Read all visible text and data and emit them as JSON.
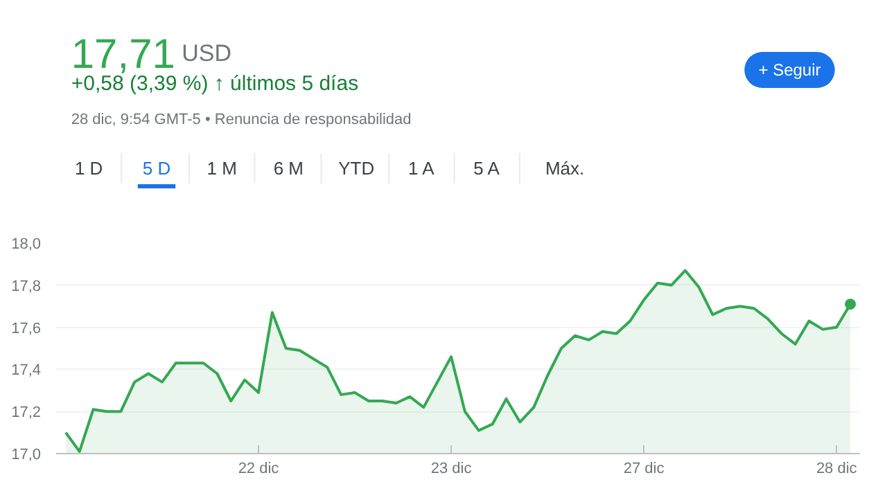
{
  "chart_data": {
    "type": "area",
    "title": "17,71",
    "subtitle": "USD",
    "annotations": [
      "+0,58 (3,39 %) ↑ últimos 5 días",
      "28 dic, 9:54 GMT-5 • Renuncia de responsabilidad",
      "+ Seguir",
      "1 D",
      "5 D",
      "1 M",
      "6 M",
      "YTD",
      "1 A",
      "5 A",
      "Máx."
    ],
    "categories": [
      null,
      null,
      null,
      null,
      null,
      null,
      null,
      null,
      null,
      null,
      null,
      null,
      null,
      null,
      "22 dic",
      null,
      null,
      null,
      null,
      null,
      null,
      null,
      null,
      null,
      null,
      null,
      null,
      null,
      "23 dic",
      null,
      null,
      null,
      null,
      null,
      null,
      null,
      null,
      null,
      null,
      null,
      null,
      null,
      "27 dic",
      null,
      null,
      null,
      null,
      null,
      null,
      null,
      null,
      null,
      null,
      null,
      null,
      null,
      "28 dic",
      null
    ],
    "series": [
      {
        "color": "#34a853",
        "values": [
          17.1,
          17.01,
          17.21,
          17.2,
          17.2,
          17.34,
          17.38,
          17.34,
          17.43,
          17.43,
          17.43,
          17.38,
          17.25,
          17.35,
          17.29,
          17.67,
          17.5,
          17.49,
          17.45,
          17.41,
          17.28,
          17.29,
          17.25,
          17.25,
          17.24,
          17.27,
          17.22,
          17.34,
          17.46,
          17.2,
          17.11,
          17.14,
          17.26,
          17.15,
          17.22,
          17.37,
          17.5,
          17.56,
          17.54,
          17.58,
          17.57,
          17.63,
          17.73,
          17.81,
          17.8,
          17.87,
          17.79,
          17.66,
          17.69,
          17.7,
          17.69,
          17.64,
          17.57,
          17.52,
          17.63,
          17.59,
          17.6,
          17.71
        ]
      }
    ],
    "ylim": [
      17.0,
      18.0
    ],
    "yticks": [
      {
        "value": 17.0,
        "label": "17,0"
      },
      {
        "value": 17.2,
        "label": "17,2"
      },
      {
        "value": 17.4,
        "label": "17,4"
      },
      {
        "value": 17.6,
        "label": "17,6"
      },
      {
        "value": 17.8,
        "label": "17,8"
      },
      {
        "value": 18.0,
        "label": "18,0"
      }
    ],
    "grid": "y"
  }
}
